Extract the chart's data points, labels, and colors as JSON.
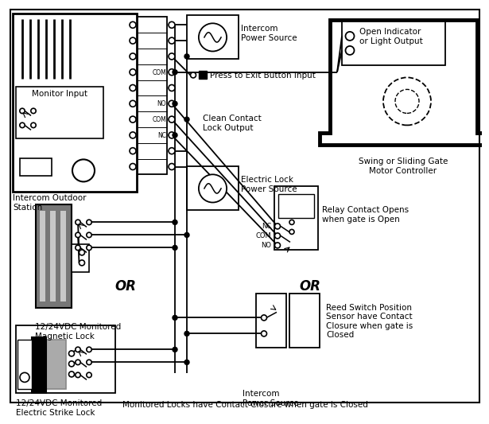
{
  "bg_color": "#ffffff",
  "lc": "#000000",
  "tc": "#000000",
  "labels": {
    "intercom_power": "Intercom\nPower Source",
    "press_exit": "Press to Exit Button Input",
    "clean_contact": "Clean Contact\nLock Output",
    "electric_lock": "Electric Lock\nPower Source",
    "monitor_input": "Monitor Input",
    "intercom_station": "Intercom Outdoor\nStation",
    "mag_lock": "12/24VDC Monitored\nMagnetic Lock",
    "strike_lock": "12/24VDC Monitored\nElectric Strike Lock",
    "gate_controller": "Swing or Sliding Gate\nMotor Controller",
    "open_indicator": "Open Indicator\nor Light Output",
    "relay_contact": "Relay Contact Opens\nwhen gate is Open",
    "reed_switch": "Reed Switch Position\nSensor have Contact\nClosure when gate is\nClosed",
    "bottom_note": "Monitored Locks have Contact Closure when gate is Closed",
    "or1": "OR",
    "or2": "OR",
    "com_tb": "COM",
    "no_tb": "NO",
    "com2_tb": "COM",
    "nc_tb": "NC",
    "nc_relay": "NC",
    "com_relay": "COM",
    "no_relay": "NO"
  },
  "font_main": 7.5,
  "font_small": 6.0,
  "font_or": 12
}
